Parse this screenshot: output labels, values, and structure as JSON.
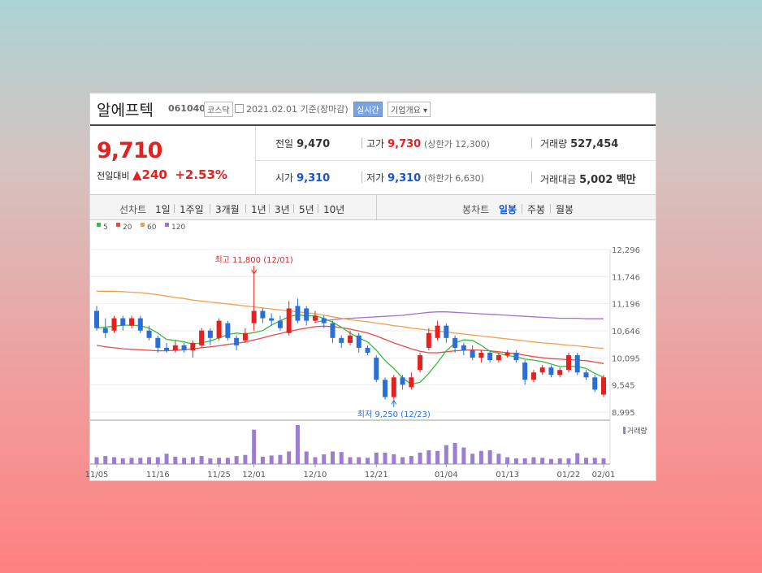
{
  "header": {
    "name": "알에프텍",
    "code": "061040",
    "market": "코스닥",
    "date_text": "2021.02.01 기준(장마감)",
    "realtime": "실시간",
    "company_info": "기업개요 ▾"
  },
  "price": {
    "current": "9,710",
    "diff_label": "전일대비",
    "diff_arrow": "▲",
    "diff_value": "240",
    "diff_pct": "+2.53%",
    "prev_label": "전일",
    "prev": "9,470",
    "high_label": "고가",
    "high": "9,730",
    "upper_label": "(상한가 12,300)",
    "volume_label": "거래량",
    "volume": "527,454",
    "open_label": "시가",
    "open": "9,310",
    "low_label": "저가",
    "low": "9,310",
    "lower_label": "(하한가 6,630)",
    "amount_label": "거래대금",
    "amount": "5,002 백만"
  },
  "tabs": {
    "line_label": "선차트",
    "line": [
      "1일",
      "1주일",
      "3개월",
      "1년",
      "3년",
      "5년",
      "10년"
    ],
    "candle_label": "봉차트",
    "candle": [
      "일봉",
      "주봉",
      "월봉"
    ],
    "active": "일봉"
  },
  "colors": {
    "up": "#e52020",
    "down": "#2a6fd6",
    "ma5": "#3db93d",
    "ma20": "#e84a4a",
    "ma60": "#f0a050",
    "ma120": "#a770d0",
    "volume": "#9b7ed0"
  },
  "chart_data": {
    "type": "candlestick",
    "legend": [
      {
        "name": "5",
        "color": "#3db93d"
      },
      {
        "name": "20",
        "color": "#e84a4a"
      },
      {
        "name": "60",
        "color": "#f0a050"
      },
      {
        "name": "120",
        "color": "#a770d0"
      }
    ],
    "y_ticks": [
      12296,
      11746,
      11196,
      10646,
      10095,
      9545,
      8995
    ],
    "ylim": [
      8995,
      12296
    ],
    "x_ticks": [
      "11/05",
      "11/16",
      "11/25",
      "12/01",
      "12/10",
      "12/21",
      "01/04",
      "01/13",
      "01/22",
      "02/01"
    ],
    "x_tick_index": [
      0,
      7,
      14,
      18,
      25,
      32,
      40,
      47,
      54,
      58
    ],
    "high_annotation": {
      "text": "최고 11,800 (12/01)",
      "index": 18,
      "value": 11800
    },
    "low_annotation": {
      "text": "최저 9,250 (12/23)",
      "index": 34,
      "value": 9250
    },
    "volume_label": "거래량",
    "candles": [
      {
        "o": 11050,
        "c": 10700,
        "h": 11150,
        "l": 10650
      },
      {
        "o": 10700,
        "c": 10600,
        "h": 10900,
        "l": 10500
      },
      {
        "o": 10650,
        "c": 10900,
        "h": 10950,
        "l": 10600
      },
      {
        "o": 10900,
        "c": 10750,
        "h": 10950,
        "l": 10650
      },
      {
        "o": 10750,
        "c": 10900,
        "h": 10950,
        "l": 10700
      },
      {
        "o": 10900,
        "c": 10650,
        "h": 10950,
        "l": 10600
      },
      {
        "o": 10650,
        "c": 10500,
        "h": 10750,
        "l": 10450
      },
      {
        "o": 10500,
        "c": 10300,
        "h": 10550,
        "l": 10200
      },
      {
        "o": 10300,
        "c": 10250,
        "h": 10400,
        "l": 10200
      },
      {
        "o": 10250,
        "c": 10350,
        "h": 10450,
        "l": 10200
      },
      {
        "o": 10350,
        "c": 10250,
        "h": 10400,
        "l": 10200
      },
      {
        "o": 10250,
        "c": 10400,
        "h": 10450,
        "l": 10100
      },
      {
        "o": 10350,
        "c": 10650,
        "h": 10700,
        "l": 10300
      },
      {
        "o": 10650,
        "c": 10500,
        "h": 10700,
        "l": 10350
      },
      {
        "o": 10500,
        "c": 10850,
        "h": 10900,
        "l": 10450
      },
      {
        "o": 10800,
        "c": 10500,
        "h": 10850,
        "l": 10450
      },
      {
        "o": 10500,
        "c": 10350,
        "h": 10550,
        "l": 10250
      },
      {
        "o": 10450,
        "c": 10600,
        "h": 10700,
        "l": 10400
      },
      {
        "o": 10800,
        "c": 11050,
        "h": 11800,
        "l": 10650
      },
      {
        "o": 11050,
        "c": 10900,
        "h": 11100,
        "l": 10800
      },
      {
        "o": 10900,
        "c": 10850,
        "h": 11000,
        "l": 10750
      },
      {
        "o": 10850,
        "c": 10700,
        "h": 10950,
        "l": 10650
      },
      {
        "o": 10600,
        "c": 11100,
        "h": 11250,
        "l": 10550
      },
      {
        "o": 11150,
        "c": 10850,
        "h": 11300,
        "l": 10800
      },
      {
        "o": 11100,
        "c": 10850,
        "h": 11150,
        "l": 10750
      },
      {
        "o": 10850,
        "c": 10950,
        "h": 11050,
        "l": 10800
      },
      {
        "o": 10900,
        "c": 10800,
        "h": 10950,
        "l": 10700
      },
      {
        "o": 10800,
        "c": 10500,
        "h": 10850,
        "l": 10400
      },
      {
        "o": 10500,
        "c": 10400,
        "h": 10550,
        "l": 10300
      },
      {
        "o": 10400,
        "c": 10550,
        "h": 10650,
        "l": 10350
      },
      {
        "o": 10550,
        "c": 10300,
        "h": 10600,
        "l": 10200
      },
      {
        "o": 10300,
        "c": 10200,
        "h": 10350,
        "l": 10150
      },
      {
        "o": 10100,
        "c": 9650,
        "h": 10150,
        "l": 9600
      },
      {
        "o": 9650,
        "c": 9300,
        "h": 9700,
        "l": 9250
      },
      {
        "o": 9300,
        "c": 9700,
        "h": 9750,
        "l": 9250
      },
      {
        "o": 9700,
        "c": 9550,
        "h": 9750,
        "l": 9450
      },
      {
        "o": 9500,
        "c": 9700,
        "h": 9800,
        "l": 9450
      },
      {
        "o": 9850,
        "c": 10150,
        "h": 10200,
        "l": 9800
      },
      {
        "o": 10300,
        "c": 10600,
        "h": 10700,
        "l": 10250
      },
      {
        "o": 10500,
        "c": 10750,
        "h": 10850,
        "l": 10450
      },
      {
        "o": 10750,
        "c": 10500,
        "h": 10800,
        "l": 10400
      },
      {
        "o": 10500,
        "c": 10300,
        "h": 10550,
        "l": 10200
      },
      {
        "o": 10350,
        "c": 10250,
        "h": 10400,
        "l": 10150
      },
      {
        "o": 10250,
        "c": 10100,
        "h": 10350,
        "l": 10050
      },
      {
        "o": 10100,
        "c": 10200,
        "h": 10250,
        "l": 10000
      },
      {
        "o": 10200,
        "c": 10050,
        "h": 10250,
        "l": 10000
      },
      {
        "o": 10050,
        "c": 10150,
        "h": 10200,
        "l": 10000
      },
      {
        "o": 10150,
        "c": 10200,
        "h": 10250,
        "l": 10100
      },
      {
        "o": 10200,
        "c": 10050,
        "h": 10250,
        "l": 10000
      },
      {
        "o": 10000,
        "c": 9650,
        "h": 10050,
        "l": 9550
      },
      {
        "o": 9650,
        "c": 9800,
        "h": 9850,
        "l": 9600
      },
      {
        "o": 9800,
        "c": 9900,
        "h": 9950,
        "l": 9750
      },
      {
        "o": 9900,
        "c": 9750,
        "h": 9950,
        "l": 9700
      },
      {
        "o": 9750,
        "c": 9850,
        "h": 9900,
        "l": 9700
      },
      {
        "o": 9850,
        "c": 10150,
        "h": 10200,
        "l": 9800
      },
      {
        "o": 10150,
        "c": 9800,
        "h": 10200,
        "l": 9750
      },
      {
        "o": 9800,
        "c": 9700,
        "h": 9850,
        "l": 9650
      },
      {
        "o": 9700,
        "c": 9450,
        "h": 9750,
        "l": 9400
      },
      {
        "o": 9350,
        "c": 9700,
        "h": 9750,
        "l": 9300
      }
    ],
    "ma5": [
      10700,
      10720,
      10740,
      10760,
      10760,
      10750,
      10700,
      10600,
      10470,
      10450,
      10420,
      10380,
      10400,
      10440,
      10500,
      10570,
      10600,
      10580,
      10610,
      10650,
      10760,
      10850,
      10930,
      10970,
      10950,
      10950,
      10900,
      10820,
      10720,
      10600,
      10500,
      10420,
      10250,
      10040,
      9880,
      9690,
      9560,
      9600,
      9780,
      10000,
      10240,
      10400,
      10460,
      10450,
      10350,
      10230,
      10190,
      10140,
      10120,
      10070,
      10050,
      10020,
      9970,
      9920,
      9930,
      9920,
      9880,
      9780,
      9700
    ],
    "ma20": [
      10350,
      10320,
      10300,
      10280,
      10270,
      10260,
      10250,
      10240,
      10240,
      10250,
      10260,
      10280,
      10300,
      10320,
      10340,
      10370,
      10390,
      10420,
      10460,
      10500,
      10550,
      10590,
      10630,
      10670,
      10700,
      10730,
      10740,
      10730,
      10710,
      10680,
      10640,
      10600,
      10540,
      10470,
      10400,
      10340,
      10280,
      10230,
      10200,
      10200,
      10220,
      10240,
      10250,
      10260,
      10250,
      10240,
      10220,
      10200,
      10180,
      10150,
      10120,
      10100,
      10080,
      10070,
      10060,
      10050,
      10040,
      10010,
      9980
    ],
    "ma60": [
      11450,
      11450,
      11450,
      11440,
      11430,
      11420,
      11400,
      11380,
      11350,
      11320,
      11300,
      11270,
      11250,
      11230,
      11210,
      11190,
      11170,
      11150,
      11130,
      11110,
      11090,
      11070,
      11050,
      11030,
      11010,
      10990,
      10960,
      10930,
      10900,
      10870,
      10850,
      10830,
      10800,
      10780,
      10750,
      10730,
      10700,
      10680,
      10660,
      10640,
      10620,
      10600,
      10580,
      10560,
      10540,
      10520,
      10500,
      10480,
      10460,
      10440,
      10420,
      10400,
      10390,
      10370,
      10350,
      10340,
      10320,
      10300,
      10290
    ],
    "ma120": [
      null,
      null,
      null,
      null,
      null,
      null,
      null,
      null,
      null,
      null,
      null,
      null,
      null,
      null,
      null,
      null,
      null,
      null,
      null,
      null,
      null,
      null,
      null,
      null,
      null,
      10820,
      10850,
      10870,
      10890,
      10900,
      10910,
      10920,
      10930,
      10940,
      10950,
      10960,
      10980,
      11000,
      11020,
      11030,
      11030,
      11020,
      11010,
      11000,
      10990,
      10980,
      10970,
      10960,
      10950,
      10940,
      10930,
      10920,
      10910,
      10900,
      10900,
      10900,
      10890,
      10890,
      10890
    ],
    "volumes": [
      12,
      14,
      12,
      10,
      11,
      11,
      12,
      12,
      18,
      13,
      11,
      12,
      14,
      10,
      11,
      11,
      14,
      16,
      60,
      13,
      15,
      16,
      22,
      68,
      22,
      12,
      17,
      22,
      21,
      12,
      12,
      11,
      20,
      20,
      17,
      12,
      14,
      20,
      24,
      23,
      33,
      37,
      29,
      18,
      23,
      24,
      18,
      12,
      10,
      10,
      12,
      11,
      9,
      10,
      10,
      19,
      11,
      11,
      10
    ]
  }
}
